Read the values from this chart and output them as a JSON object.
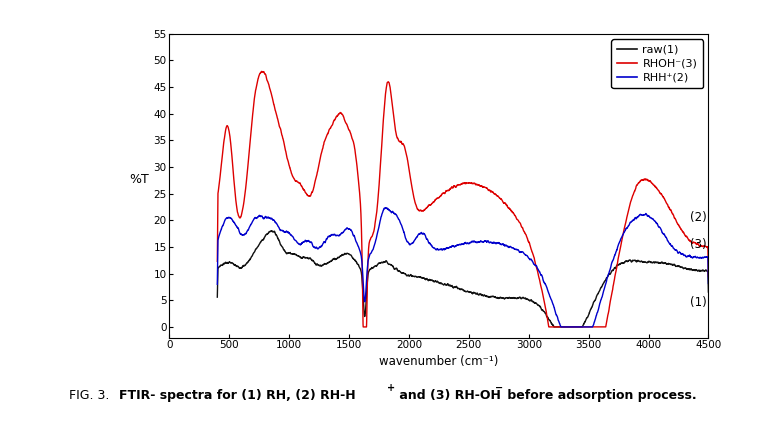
{
  "title": "",
  "xlabel": "wavenumber (cm⁻¹)",
  "ylabel": "%T",
  "xlim": [
    0,
    4500
  ],
  "ylim": [
    -2,
    55
  ],
  "xticks": [
    0,
    500,
    1000,
    1500,
    2000,
    2500,
    3000,
    3500,
    4000,
    4500
  ],
  "yticks": [
    0,
    5,
    10,
    15,
    20,
    25,
    30,
    35,
    40,
    45,
    50,
    55
  ],
  "legend_entries": [
    "raw(1)",
    "RHOH⁻(3)",
    "RHH⁺(2)"
  ],
  "legend_colors": [
    "#111111",
    "#dd0000",
    "#0000cc"
  ],
  "line_colors": [
    "#111111",
    "#dd0000",
    "#0000cc"
  ],
  "background_color": "#ffffff"
}
